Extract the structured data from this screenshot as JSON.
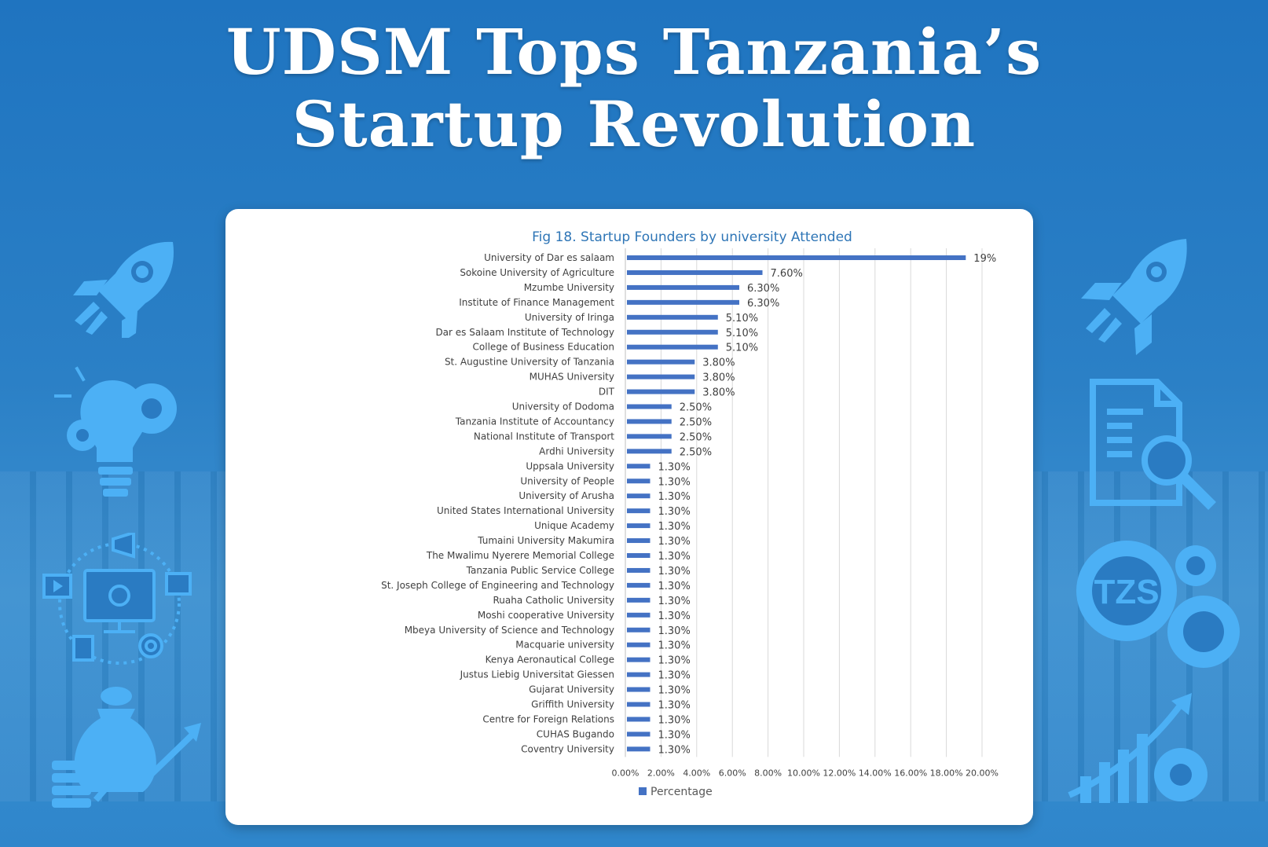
{
  "headline": {
    "line1": "UDSM Tops Tanzania’s",
    "line2": "Startup Revolution"
  },
  "colors": {
    "background": "#2a7bc2",
    "bar": "#4472c4",
    "chart_title": "#2e75b6",
    "icon": "#4cb0f5"
  },
  "icons": {
    "left": [
      "rocket-icon",
      "lightbulb-gear-icon",
      "digital-marketing-icon",
      "money-bag-growth-icon"
    ],
    "right": [
      "rocket-icon",
      "document-search-icon",
      "tzs-gears-icon",
      "growth-chart-gear-icon"
    ],
    "tzs_label": "TZS"
  },
  "chart_data": {
    "type": "bar",
    "orientation": "horizontal",
    "title": "Fig 18. Startup Founders by university Attended",
    "categories": [
      "University of Dar es salaam",
      "Sokoine University of Agriculture",
      "Mzumbe University",
      "Institute of Finance Management",
      "University of Iringa",
      "Dar es Salaam Institute of Technology",
      "College of Business Education",
      "St. Augustine University of Tanzania",
      "MUHAS University",
      "DIT",
      "University of Dodoma",
      "Tanzania Institute of Accountancy",
      "National Institute of Transport",
      "Ardhi University",
      "Uppsala University",
      "University of People",
      "University of Arusha",
      "United States International University",
      "Unique Academy",
      "Tumaini University Makumira",
      "The Mwalimu Nyerere Memorial College",
      "Tanzania Public Service College",
      "St. Joseph College of Engineering and Technology",
      "Ruaha Catholic University",
      "Moshi cooperative University",
      "Mbeya University of Science and Technology",
      "Macquarie university",
      "Kenya Aeronautical College",
      "Justus Liebig Universitat Giessen",
      "Gujarat University",
      "Griffith University",
      "Centre for Foreign Relations",
      "CUHAS Bugando",
      "Coventry University"
    ],
    "series": [
      {
        "name": "Percentage",
        "values": [
          19,
          7.6,
          6.3,
          6.3,
          5.1,
          5.1,
          5.1,
          3.8,
          3.8,
          3.8,
          2.5,
          2.5,
          2.5,
          2.5,
          1.3,
          1.3,
          1.3,
          1.3,
          1.3,
          1.3,
          1.3,
          1.3,
          1.3,
          1.3,
          1.3,
          1.3,
          1.3,
          1.3,
          1.3,
          1.3,
          1.3,
          1.3,
          1.3,
          1.3
        ]
      }
    ],
    "data_labels": [
      "19%",
      "7.60%",
      "6.30%",
      "6.30%",
      "5.10%",
      "5.10%",
      "5.10%",
      "3.80%",
      "3.80%",
      "3.80%",
      "2.50%",
      "2.50%",
      "2.50%",
      "2.50%",
      "1.30%",
      "1.30%",
      "1.30%",
      "1.30%",
      "1.30%",
      "1.30%",
      "1.30%",
      "1.30%",
      "1.30%",
      "1.30%",
      "1.30%",
      "1.30%",
      "1.30%",
      "1.30%",
      "1.30%",
      "1.30%",
      "1.30%",
      "1.30%",
      "1.30%",
      "1.30%"
    ],
    "x_ticks": [
      "0.00%",
      "2.00%",
      "4.00%",
      "6.00%",
      "8.00%",
      "10.00%",
      "12.00%",
      "14.00%",
      "16.00%",
      "18.00%",
      "20.00%"
    ],
    "xlim": [
      0,
      20
    ],
    "grid": true,
    "legend": "bottom"
  }
}
